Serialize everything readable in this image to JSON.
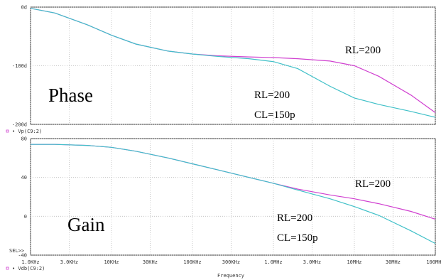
{
  "chart_data": [
    {
      "type": "line",
      "title": "Phase",
      "xlabel": "",
      "ylabel": "",
      "xscale": "log",
      "xlim": [
        1000,
        100000000
      ],
      "ylim": [
        -200,
        0
      ],
      "yticks": [
        0,
        -100,
        -200
      ],
      "ytick_labels": [
        "0d",
        "-100d",
        "-200d"
      ],
      "grid": true,
      "legend_label": "Vp(C9:2)",
      "series": [
        {
          "name": "",
          "color": "#d040d0",
          "x": [
            1000,
            2000,
            5000,
            10000,
            20000,
            50000,
            100000,
            200000,
            500000,
            1000000,
            2000000,
            5000000,
            10000000,
            20000000,
            50000000,
            100000000
          ],
          "y": [
            -2,
            -10,
            -30,
            -48,
            -63,
            -75,
            -80,
            -83,
            -85,
            -86,
            -88,
            -92,
            -100,
            -118,
            -150,
            -180
          ]
        },
        {
          "name": "",
          "color": "#40c0c8",
          "x": [
            1000,
            2000,
            5000,
            10000,
            20000,
            50000,
            100000,
            200000,
            500000,
            1000000,
            2000000,
            5000000,
            10000000,
            20000000,
            50000000,
            100000000
          ],
          "y": [
            -2,
            -10,
            -30,
            -48,
            -63,
            -75,
            -80,
            -84,
            -88,
            -93,
            -105,
            -135,
            -155,
            -166,
            -178,
            -188
          ]
        }
      ],
      "annotations": [
        {
          "text": "RL=200"
        },
        {
          "text": "RL=200"
        },
        {
          "text": "CL=150p"
        }
      ]
    },
    {
      "type": "line",
      "title": "Gain",
      "xlabel": "Frequency",
      "ylabel": "",
      "xscale": "log",
      "xlim": [
        1000,
        100000000
      ],
      "ylim": [
        -40,
        80
      ],
      "yticks": [
        80,
        40,
        0,
        -40
      ],
      "ytick_labels": [
        "80",
        "40",
        "0",
        "-40"
      ],
      "xticks": [
        1000,
        3000,
        10000,
        30000,
        100000,
        300000,
        1000000,
        3000000,
        10000000,
        30000000,
        100000000
      ],
      "xtick_labels": [
        "1.0KHz",
        "3.0KHz",
        "10KHz",
        "30KHz",
        "100KHz",
        "300KHz",
        "1.0MHz",
        "3.0MHz",
        "10MHz",
        "30MHz",
        "100MHz"
      ],
      "grid": true,
      "legend_label": "Vdb(C9:2)",
      "cursor_label": "SEL>>",
      "series": [
        {
          "name": "",
          "color": "#d040d0",
          "x": [
            1000,
            2000,
            5000,
            10000,
            20000,
            50000,
            100000,
            200000,
            500000,
            1000000,
            2000000,
            5000000,
            10000000,
            20000000,
            50000000,
            100000000
          ],
          "y": [
            74,
            74,
            73,
            71,
            67,
            60,
            54,
            48,
            40,
            34,
            28,
            22,
            18,
            13,
            5,
            -3
          ]
        },
        {
          "name": "",
          "color": "#40c0c8",
          "x": [
            1000,
            2000,
            5000,
            10000,
            20000,
            50000,
            100000,
            200000,
            500000,
            1000000,
            2000000,
            5000000,
            10000000,
            20000000,
            50000000,
            100000000
          ],
          "y": [
            74,
            74,
            73,
            71,
            67,
            60,
            54,
            48,
            40,
            34,
            27,
            18,
            10,
            1,
            -15,
            -28
          ]
        }
      ],
      "annotations": [
        {
          "text": "RL=200"
        },
        {
          "text": "RL=200"
        },
        {
          "text": "CL=150p"
        }
      ]
    }
  ]
}
